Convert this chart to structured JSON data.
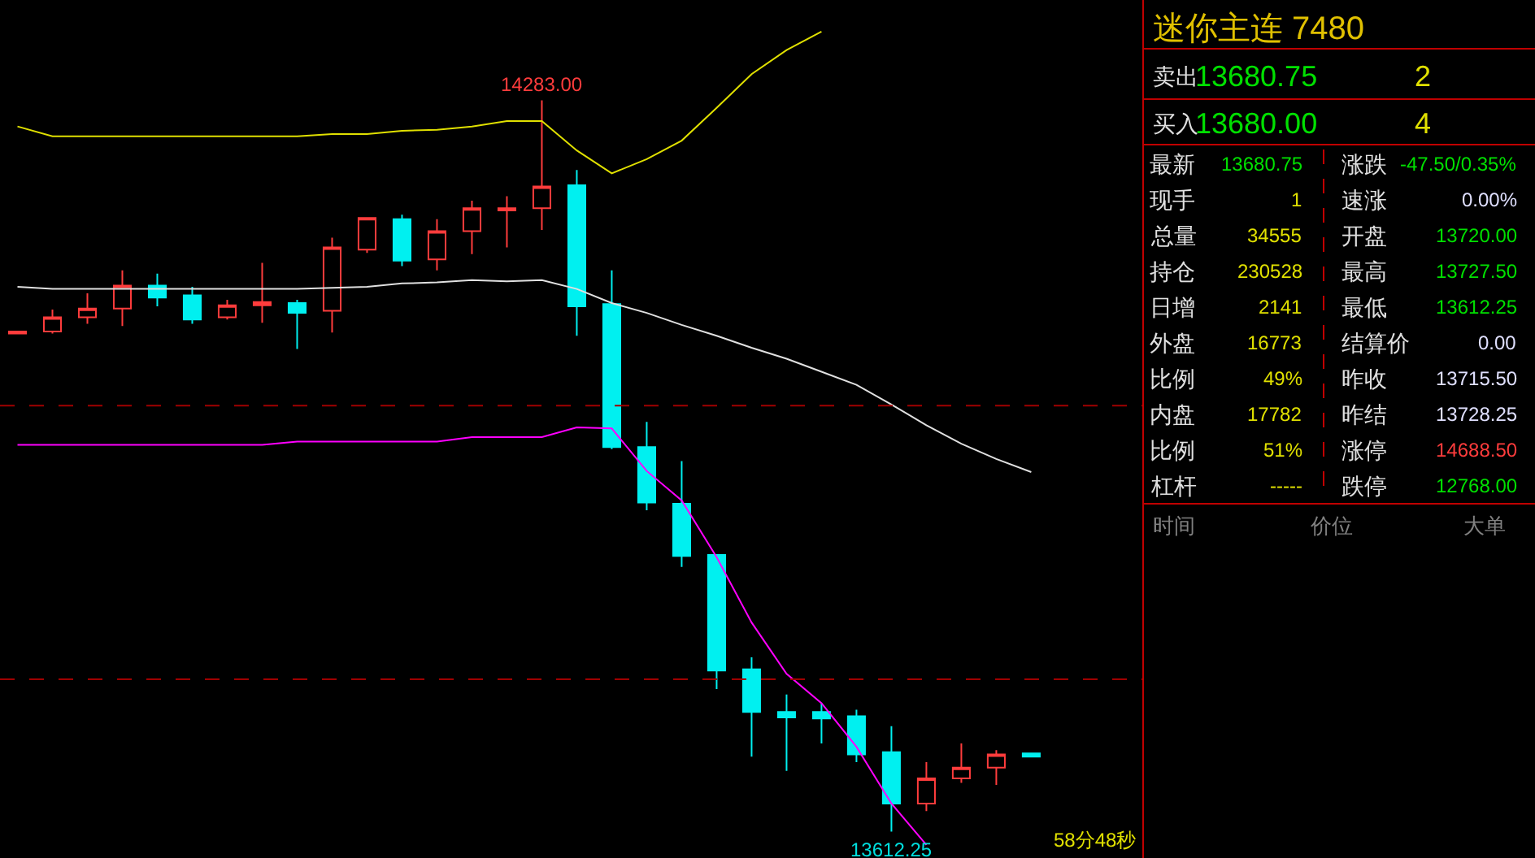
{
  "chart_data": [
    {
      "type": "candlestick",
      "categories": [
        null,
        null,
        null,
        null,
        null,
        null,
        null,
        null,
        null,
        null,
        null,
        null,
        null,
        null,
        null,
        null,
        null,
        null,
        null,
        null,
        null,
        null,
        null,
        null,
        null,
        null,
        null,
        null,
        null,
        null
      ],
      "ohlc": [
        [
          14069,
          14071,
          14069,
          14071
        ],
        [
          14071,
          14091,
          14069,
          14084
        ],
        [
          14084,
          14106,
          14078,
          14092
        ],
        [
          14092,
          14127,
          14076,
          14113
        ],
        [
          14113,
          14124,
          14094,
          14102
        ],
        [
          14104,
          14112,
          14078,
          14082
        ],
        [
          14084,
          14100,
          14082,
          14095
        ],
        [
          14095,
          14134,
          14079,
          14098
        ],
        [
          14097,
          14100,
          14055,
          14088
        ],
        [
          14090,
          14157,
          14070,
          14148
        ],
        [
          14146,
          14175,
          14143,
          14175
        ],
        [
          14174,
          14178,
          14131,
          14136
        ],
        [
          14137,
          14174,
          14127,
          14163
        ],
        [
          14163,
          14191,
          14142,
          14184
        ],
        [
          14182,
          14195,
          14148,
          14184
        ],
        [
          14184,
          14283,
          14164,
          14204
        ],
        [
          14205,
          14219,
          14067,
          14094
        ],
        [
          14096,
          14127,
          13963,
          13965
        ],
        [
          13965,
          13988,
          13907,
          13914
        ],
        [
          13913,
          13952,
          13855,
          13865
        ],
        [
          13866,
          13866,
          13743,
          13760
        ],
        [
          13761,
          13772,
          13681,
          13722
        ],
        [
          13722,
          13738,
          13668,
          13717
        ],
        [
          13722,
          13730,
          13693,
          13716
        ],
        [
          13718,
          13724,
          13676,
          13683
        ],
        [
          13685,
          13709,
          13612.25,
          13638
        ],
        [
          13638,
          13676,
          13631,
          13661
        ],
        [
          13661,
          13693,
          13657,
          13671
        ],
        [
          13671,
          13687,
          13655,
          13683
        ],
        [
          13684,
          13684,
          13681,
          13681
        ]
      ],
      "colors": [
        "#ff3c3c",
        "#ff3c3c",
        "#ff3c3c",
        "#ff3c3c",
        "#00f0f0",
        "#00f0f0",
        "#ff3c3c",
        "#ff3c3c",
        "#00f0f0",
        "#ff3c3c",
        "#ff3c3c",
        "#00f0f0",
        "#ff3c3c",
        "#ff3c3c",
        "#ff3c3c",
        "#ff3c3c",
        "#00f0f0",
        "#00f0f0",
        "#00f0f0",
        "#00f0f0",
        "#00f0f0",
        "#00f0f0",
        "#00f0f0",
        "#00f0f0",
        "#00f0f0",
        "#00f0f0",
        "#ff3c3c",
        "#ff3c3c",
        "#ff3c3c",
        "#00f0f0"
      ],
      "series": [
        {
          "type": "line",
          "color": "#e0e000",
          "values": [
            14259,
            14250,
            14250,
            14250,
            14250,
            14250,
            14250,
            14250,
            14250,
            14252,
            14252,
            14255,
            14256,
            14259,
            14264,
            14264,
            14237,
            14216,
            14229,
            14246,
            14276,
            14307,
            14329,
            14346,
            null,
            null,
            null,
            null,
            null,
            null
          ]
        },
        {
          "type": "line",
          "color": "#e0e0e0",
          "values": [
            14112,
            14110,
            14110,
            14110,
            14110,
            14110,
            14110,
            14110,
            14110,
            14111,
            14112,
            14115,
            14116,
            14118,
            14117,
            14118,
            14110,
            14097,
            14088,
            14077,
            14067,
            14056,
            14046,
            14034,
            14022,
            14004,
            13985,
            13968,
            13954,
            13942
          ]
        },
        {
          "type": "line",
          "color": "#ff00ff",
          "values": [
            13967,
            13967,
            13967,
            13967,
            13967,
            13967,
            13967,
            13967,
            13970,
            13970,
            13970,
            13970,
            13970,
            13974,
            13974,
            13974,
            13983,
            13982,
            13943,
            13916,
            13864,
            13804,
            13757,
            13730,
            13690,
            13638,
            13600,
            null,
            null,
            null
          ]
        }
      ],
      "ylim": [
        13588,
        14375
      ],
      "ref_lines": [
        {
          "axis": "y",
          "value": 14003,
          "color": "#a00000",
          "line_style": "dashed"
        },
        {
          "axis": "y",
          "value": 13752,
          "color": "#a00000",
          "line_style": "dashed"
        }
      ],
      "annotations": [
        {
          "text": "14283.00",
          "y": 14283
        },
        {
          "text": "13612.25",
          "y": 13612.25
        },
        "58分48秒"
      ],
      "tick_labels": false,
      "grid": false
    },
    {
      "type": "other",
      "title": "迷你主连 7480",
      "annotations": [
        "卖出",
        "13680.75",
        "2",
        "买入",
        "13680.00",
        "4",
        "最新",
        "13680.75",
        "涨跌",
        "-47.50/0.35%",
        "现手",
        "1",
        "速涨",
        "0.00%",
        "总量",
        "34555",
        "开盘",
        "13720.00",
        "持仓",
        "230528",
        "最高",
        "13727.50",
        "日增",
        "2141",
        "最低",
        "13612.25",
        "外盘",
        "16773",
        "结算价",
        "0.00",
        "比例",
        "49%",
        "昨收",
        "13715.50",
        "内盘",
        "17782",
        "昨结",
        "13728.25",
        "比例",
        "51%",
        "涨停",
        "14688.50",
        "杠杆",
        "-----",
        "跌停",
        "12768.00",
        "时间",
        "价位",
        "大单"
      ]
    }
  ]
}
